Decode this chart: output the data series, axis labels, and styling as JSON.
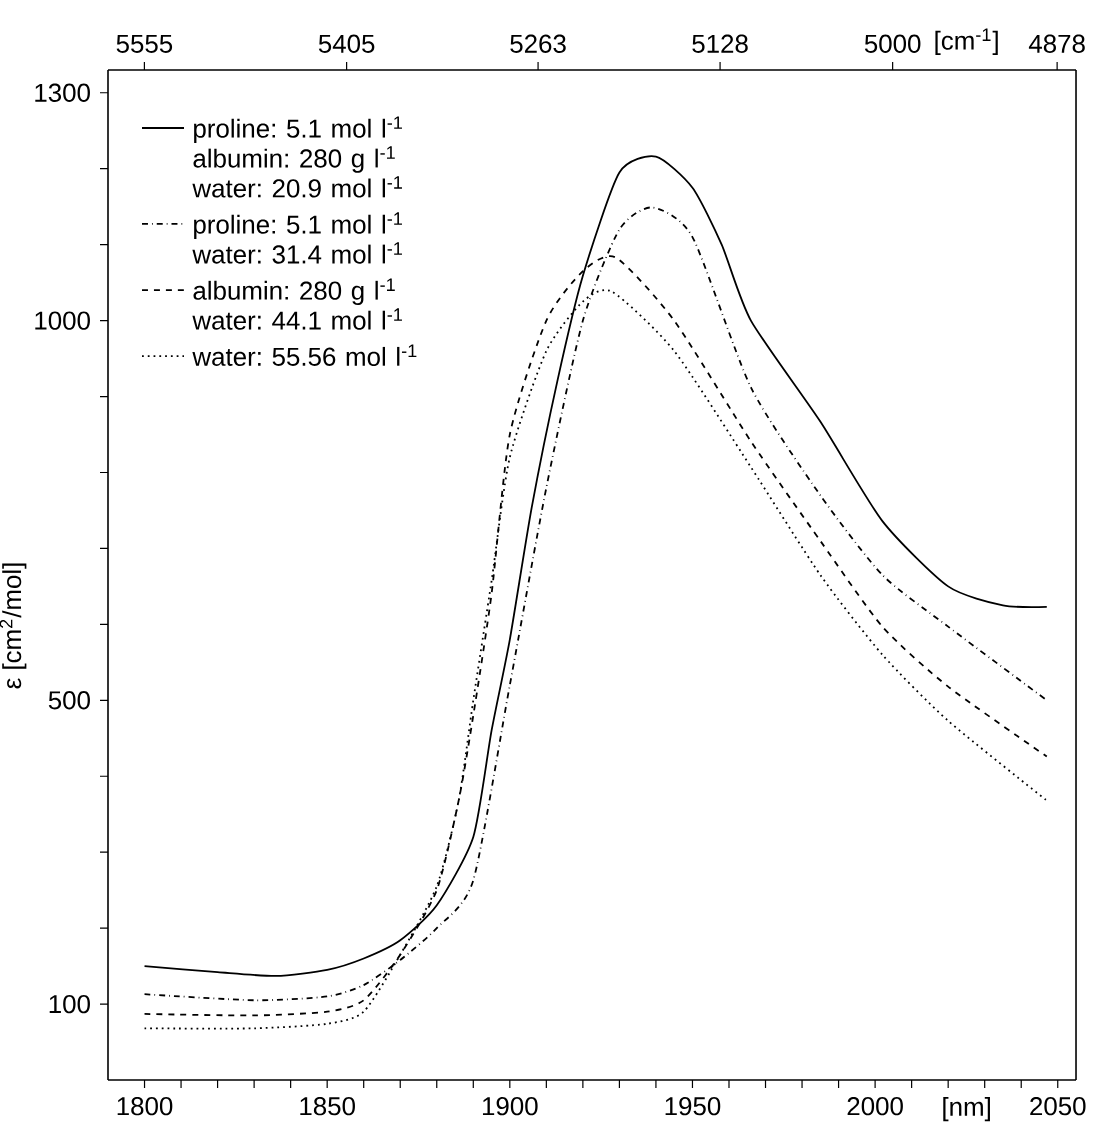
{
  "chart_data": {
    "type": "line",
    "xlabel": "[nm]",
    "x2label": "[cm$^{-1}$]",
    "ylabel": "ε [cm$^{2}$/mol]",
    "xlim": [
      1790,
      2055
    ],
    "ylim": [
      0,
      1330
    ],
    "x2lim": [
      5582,
      4864
    ],
    "xticks": [
      1800,
      {
        "value": 1810,
        "label": null
      },
      {
        "value": 1820,
        "label": null
      },
      {
        "value": 1830,
        "label": null
      },
      {
        "value": 1840,
        "label": null
      },
      1850,
      {
        "value": 1860,
        "label": null
      },
      {
        "value": 1870,
        "label": null
      },
      {
        "value": 1880,
        "label": null
      },
      {
        "value": 1890,
        "label": null
      },
      1900,
      {
        "value": 1910,
        "label": null
      },
      {
        "value": 1920,
        "label": null
      },
      {
        "value": 1930,
        "label": null
      },
      {
        "value": 1940,
        "label": null
      },
      1950,
      {
        "value": 1960,
        "label": null
      },
      {
        "value": 1970,
        "label": null
      },
      {
        "value": 1980,
        "label": null
      },
      {
        "value": 1990,
        "label": null
      },
      2000,
      {
        "value": 2010,
        "label": null
      },
      {
        "value": 2020,
        "label": null
      },
      {
        "value": 2030,
        "label": null
      },
      {
        "value": 2040,
        "label": null
      },
      2050
    ],
    "x2ticks": [
      5555,
      5405,
      5263,
      5128,
      5000,
      4878
    ],
    "yticks": [
      100,
      {
        "value": 200,
        "label": null
      },
      {
        "value": 300,
        "label": null
      },
      {
        "value": 400,
        "label": null
      },
      500,
      {
        "value": 600,
        "label": null
      },
      {
        "value": 700,
        "label": null
      },
      {
        "value": 800,
        "label": null
      },
      {
        "value": 900,
        "label": null
      },
      1000,
      {
        "value": 1100,
        "label": null
      },
      {
        "value": 1200,
        "label": null
      },
      1300
    ],
    "legend": "top left",
    "grid": false,
    "marker": "none",
    "series": [
      {
        "name": "proline: 5.1 mol l$^{-1}$ albumin: 280 g l$^{-1}$ water: 20.9 mol l$^{-1}$",
        "color": "#000000",
        "line_style": "solid",
        "x": [
          1800,
          1820,
          1836,
          1850,
          1860,
          1870,
          1880,
          1890,
          1895,
          1900,
          1906,
          1913,
          1920,
          1930,
          1940,
          1950,
          1958,
          1966,
          1985,
          2002,
          2020,
          2035,
          2047
        ],
        "values": [
          150,
          142,
          137,
          145,
          160,
          184,
          230,
          320,
          460,
          580,
          754,
          920,
          1059,
          1195,
          1216,
          1175,
          1100,
          1000,
          867,
          736,
          650,
          625,
          623
        ]
      },
      {
        "name": "proline: 5.1 mol l$^{-1}$ water: 31.4 mol l$^{-1}$",
        "color": "#000000",
        "line_style": "dashdot",
        "x": [
          1800,
          1830,
          1850,
          1860,
          1870,
          1880,
          1890,
          1900,
          1910,
          1920,
          1930,
          1939,
          1950,
          1966,
          1985,
          2002,
          2020,
          2047
        ],
        "values": [
          113,
          105,
          110,
          125,
          158,
          200,
          263,
          520,
          780,
          1000,
          1120,
          1149,
          1110,
          912,
          770,
          665,
          597,
          500
        ]
      },
      {
        "name": "albumin: 280 g l$^{-1}$ water: 44.1 mol l$^{-1}$",
        "color": "#000000",
        "line_style": "dashed",
        "x": [
          1800,
          1830,
          1850,
          1860,
          1870,
          1880,
          1886,
          1890,
          1895,
          1900,
          1910,
          1920,
          1929,
          1945,
          1966,
          1985,
          2002,
          2020,
          2047
        ],
        "values": [
          87,
          85,
          90,
          105,
          165,
          250,
          368,
          480,
          640,
          850,
          1000,
          1065,
          1083,
          1000,
          841,
          710,
          597,
          518,
          426
        ]
      },
      {
        "name": "water: 55.56 mol l$^{-1}$",
        "color": "#000000",
        "line_style": "dotted",
        "x": [
          1800,
          1830,
          1850,
          1860,
          1870,
          1880,
          1886,
          1890,
          1895,
          1900,
          1910,
          1920,
          1928,
          1945,
          1966,
          1985,
          2002,
          2020,
          2047
        ],
        "values": [
          68,
          68,
          74,
          90,
          165,
          255,
          368,
          500,
          657,
          820,
          960,
          1025,
          1038,
          960,
          807,
          665,
          560,
          473,
          368
        ]
      }
    ]
  }
}
